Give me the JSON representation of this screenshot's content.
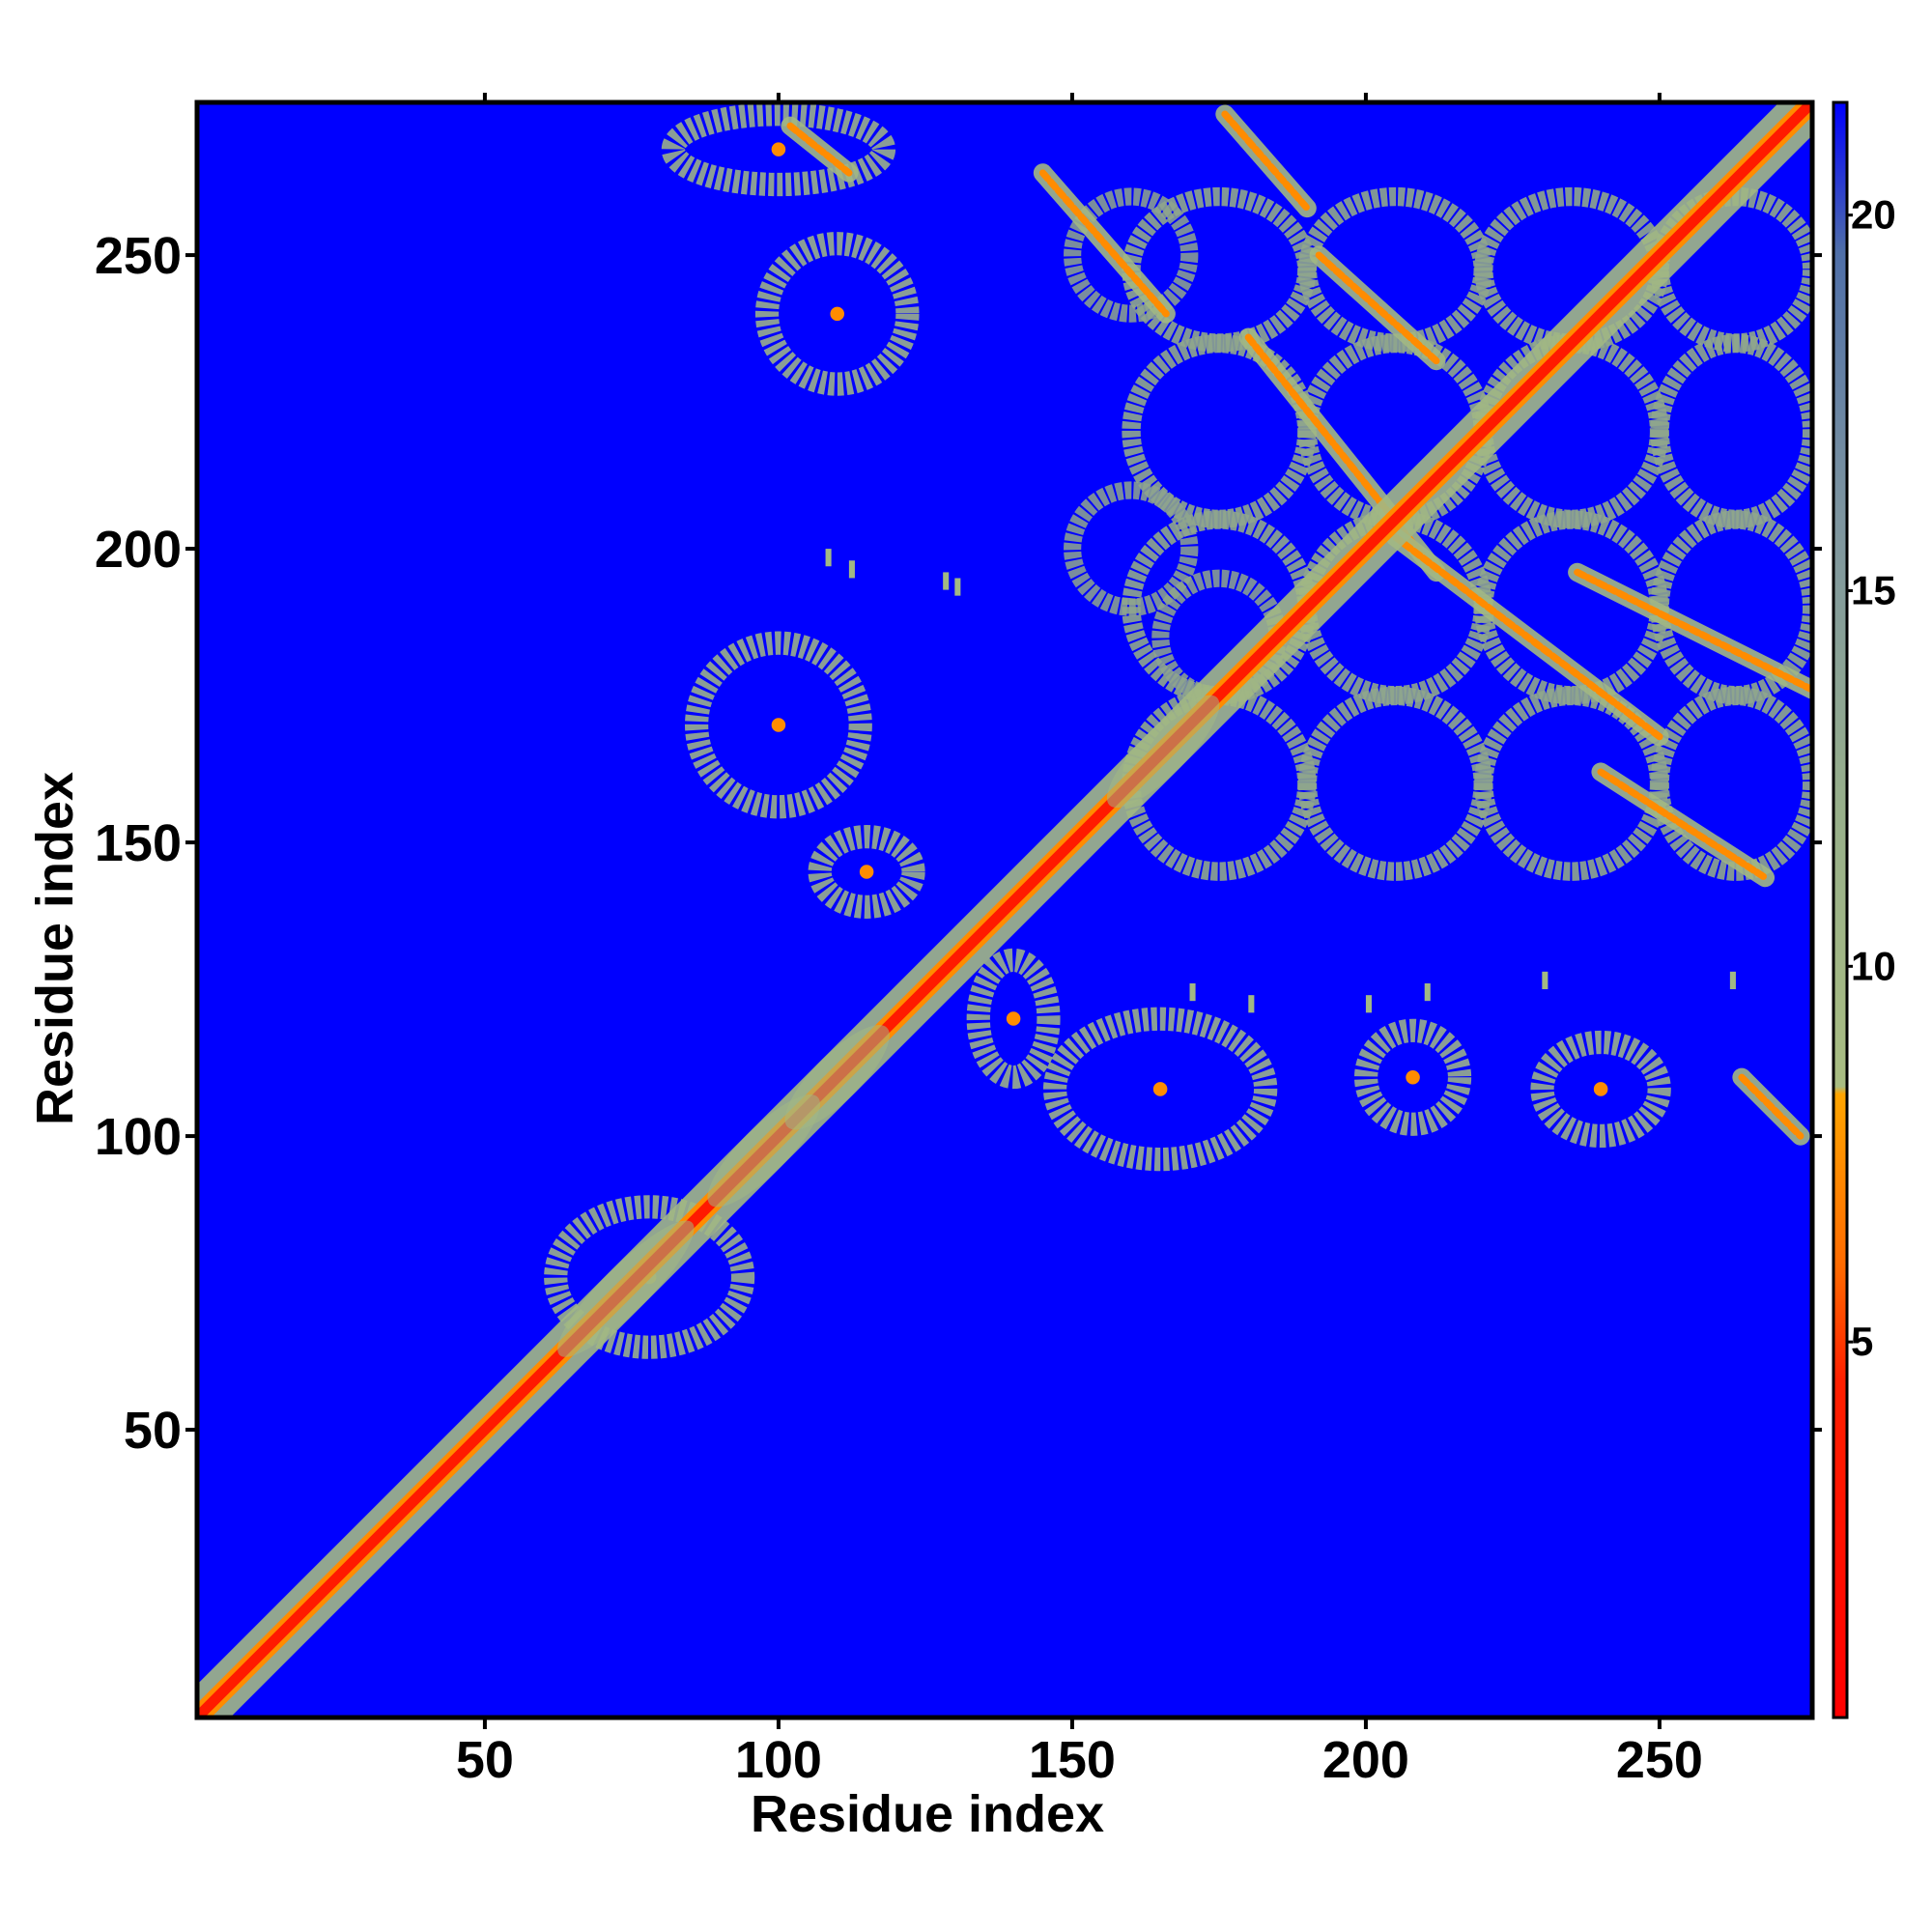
{
  "chart_data": {
    "type": "heatmap",
    "title": "",
    "xlabel": "Residue index",
    "ylabel": "Residue index",
    "xlim": [
      1,
      276
    ],
    "ylim": [
      1,
      276
    ],
    "x_ticks": [
      "50",
      "100",
      "150",
      "200",
      "250"
    ],
    "y_ticks": [
      "50",
      "100",
      "150",
      "200",
      "250"
    ],
    "x_tick_values": [
      50,
      100,
      150,
      200,
      250
    ],
    "y_tick_values": [
      50,
      100,
      150,
      200,
      250
    ],
    "colorbar": {
      "ticks": [
        "5",
        "10",
        "15",
        "20"
      ],
      "tick_values": [
        5,
        10,
        15,
        20
      ],
      "range": [
        0,
        21.5
      ],
      "stops": [
        {
          "value": 0,
          "color": "#ff0000"
        },
        {
          "value": 4.5,
          "color": "#ff2000"
        },
        {
          "value": 6,
          "color": "#ff6a00"
        },
        {
          "value": 8.3,
          "color": "#ffa500"
        },
        {
          "value": 8.4,
          "color": "#a9bd82"
        },
        {
          "value": 12,
          "color": "#98b08a"
        },
        {
          "value": 16,
          "color": "#7d95a0"
        },
        {
          "value": 19.5,
          "color": "#4f6fa8"
        },
        {
          "value": 21.5,
          "color": "#0000ff"
        }
      ]
    },
    "background_color": "#0000ff",
    "features": {
      "diagonal": "red band along x = y from 1 to 276",
      "diagonal_clusters": [
        [
          70,
          78
        ],
        [
          95,
          100
        ],
        [
          108,
          112
        ],
        [
          163,
          168
        ]
      ],
      "parallel_lines": [
        {
          "x0": 102,
          "y0": 272,
          "x1": 112,
          "y1": 264
        },
        {
          "x0": 145,
          "y0": 264,
          "x1": 166,
          "y1": 240
        },
        {
          "x0": 176,
          "y0": 274,
          "x1": 190,
          "y1": 258
        },
        {
          "x0": 192,
          "y0": 250,
          "x1": 212,
          "y1": 232
        },
        {
          "x0": 180,
          "y0": 236,
          "x1": 212,
          "y1": 196
        },
        {
          "x0": 205,
          "y0": 202,
          "x1": 250,
          "y1": 168
        },
        {
          "x0": 236,
          "y0": 196,
          "x1": 276,
          "y1": 176
        },
        {
          "x0": 240,
          "y0": 162,
          "x1": 268,
          "y1": 144
        },
        {
          "x0": 264,
          "y0": 110,
          "x1": 274,
          "y1": 100
        }
      ],
      "blobs": [
        {
          "x": 100,
          "y": 268,
          "rx": 18,
          "ry": 6
        },
        {
          "x": 110,
          "y": 240,
          "rx": 12,
          "ry": 12
        },
        {
          "x": 100,
          "y": 170,
          "rx": 14,
          "ry": 14
        },
        {
          "x": 115,
          "y": 145,
          "rx": 8,
          "ry": 6
        },
        {
          "x": 140,
          "y": 120,
          "rx": 6,
          "ry": 10
        },
        {
          "x": 165,
          "y": 108,
          "rx": 18,
          "ry": 12
        },
        {
          "x": 208,
          "y": 110,
          "rx": 8,
          "ry": 8
        },
        {
          "x": 240,
          "y": 108,
          "rx": 10,
          "ry": 8
        },
        {
          "x": 78,
          "y": 76,
          "rx": 16,
          "ry": 12
        }
      ],
      "ring_grid_x": [
        160,
        190,
        220,
        250,
        276
      ],
      "ring_grid_y": [
        260,
        235,
        205,
        175,
        145
      ],
      "scattered_points": [
        [
          108,
          200
        ],
        [
          112,
          198
        ],
        [
          128,
          196
        ],
        [
          130,
          195
        ],
        [
          170,
          126
        ],
        [
          180,
          124
        ],
        [
          200,
          124
        ],
        [
          210,
          126
        ],
        [
          230,
          128
        ],
        [
          262,
          128
        ]
      ]
    }
  }
}
